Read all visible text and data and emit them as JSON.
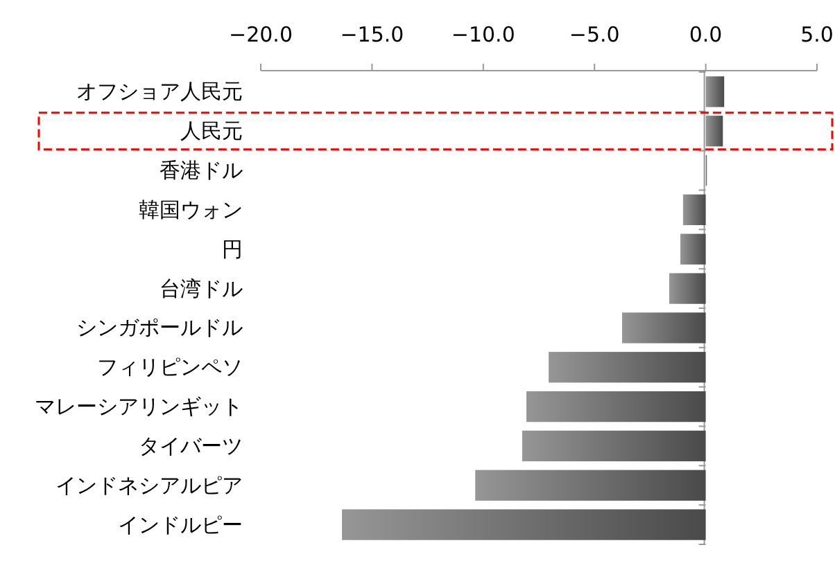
{
  "chart_data": {
    "type": "bar",
    "orientation": "horizontal",
    "categories": [
      "オフショア人民元",
      "人民元",
      "香港ドル",
      "韓国ウォン",
      "円",
      "台湾ドル",
      "シンガポールドル",
      "フィリピンペソ",
      "マレーシアリンギット",
      "タイバーツ",
      "インドネシアルピア",
      "インドルピー"
    ],
    "values": [
      0.83,
      0.77,
      0.05,
      -1.02,
      -1.14,
      -1.64,
      -3.76,
      -7.06,
      -8.06,
      -8.25,
      -10.36,
      -16.35
    ],
    "color": "#4a4a4a",
    "xlim": [
      -20,
      5
    ],
    "xticks": [
      {
        "value": -20,
        "label": "−20.0"
      },
      {
        "value": -15,
        "label": "−15.0"
      },
      {
        "value": -10,
        "label": "−10.0"
      },
      {
        "value": -5,
        "label": "−5.0"
      },
      {
        "value": 0,
        "label": "0.0"
      },
      {
        "value": 5,
        "label": "5.0"
      }
    ]
  }
}
